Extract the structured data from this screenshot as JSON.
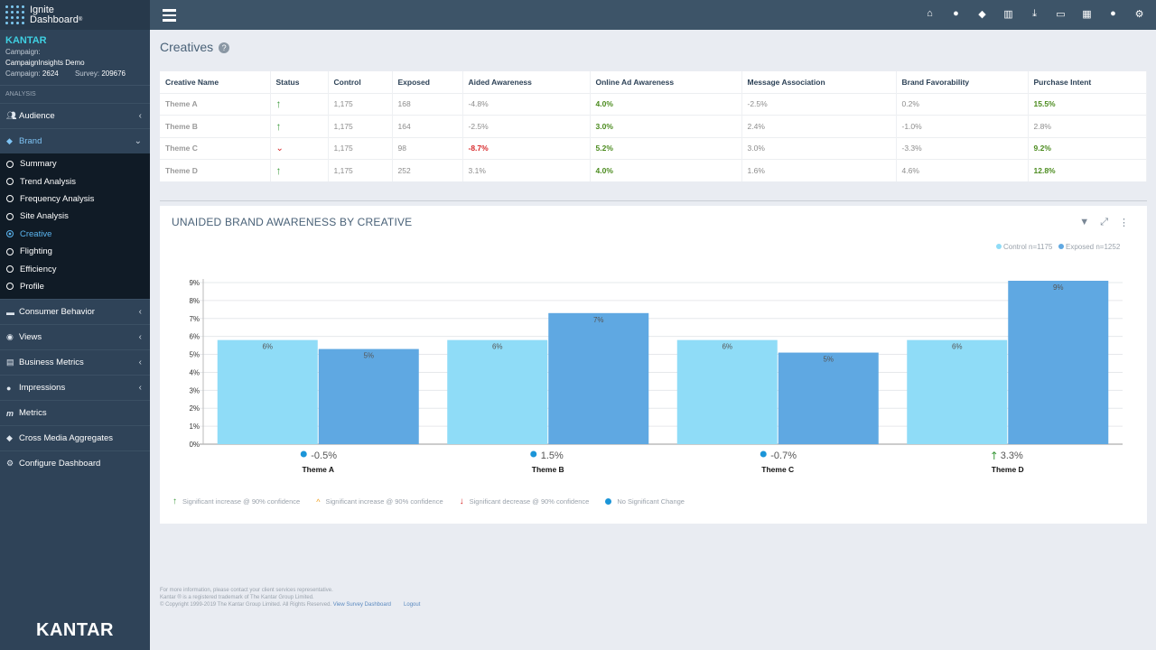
{
  "app": {
    "logo_line1": "Ignite",
    "logo_line2": "Dashboard",
    "trademark": "®"
  },
  "campaign": {
    "brand": "KANTAR",
    "campaign_label": "Campaign:",
    "campaign_name": "CampaignInsights Demo",
    "campaign_id_label": "Campaign:",
    "campaign_id": "2624",
    "survey_label": "Survey:",
    "survey_id": "209676"
  },
  "sidebar": {
    "section": "ANALYSIS",
    "items": [
      {
        "label": "Audience",
        "icon": "users-icon"
      },
      {
        "label": "Brand",
        "icon": "tag-icon"
      },
      {
        "label": "Consumer Behavior",
        "icon": "chat-icon"
      },
      {
        "label": "Views",
        "icon": "eye-icon"
      },
      {
        "label": "Business Metrics",
        "icon": "document-icon"
      },
      {
        "label": "Impressions",
        "icon": "globe-icon"
      },
      {
        "label": "Metrics",
        "icon": "m-icon"
      },
      {
        "label": "Cross Media Aggregates",
        "icon": "tags-icon"
      },
      {
        "label": "Configure Dashboard",
        "icon": "cogs-icon"
      }
    ],
    "brand_sub": [
      "Summary",
      "Trend Analysis",
      "Frequency Analysis",
      "Site Analysis",
      "Creative",
      "Flighting",
      "Efficiency",
      "Profile"
    ],
    "footer_logo": "KANTAR"
  },
  "topbar": {
    "icons": [
      "home-icon",
      "users-icon",
      "tags-icon",
      "bar-chart-icon",
      "download-icon",
      "print-icon",
      "table-icon",
      "user-icon",
      "cogs-icon"
    ]
  },
  "page": {
    "title": "Creatives"
  },
  "table": {
    "headers": [
      "Creative Name",
      "Status",
      "Control",
      "Exposed",
      "Aided Awareness",
      "Online Ad Awareness",
      "Message Association",
      "Brand Favorability",
      "Purchase Intent"
    ],
    "rows": [
      {
        "name": "Theme A",
        "status": "up",
        "control": "1,175",
        "exposed": "168",
        "aided": "-4.8%",
        "online": "4.0%",
        "message": "-2.5%",
        "favor": "0.2%",
        "intent": "15.5%"
      },
      {
        "name": "Theme B",
        "status": "up",
        "control": "1,175",
        "exposed": "164",
        "aided": "-2.5%",
        "online": "3.0%",
        "message": "2.4%",
        "favor": "-1.0%",
        "intent": "2.8%"
      },
      {
        "name": "Theme C",
        "status": "down",
        "control": "1,175",
        "exposed": "98",
        "aided": "-8.7%",
        "online": "5.2%",
        "message": "3.0%",
        "favor": "-3.3%",
        "intent": "9.2%"
      },
      {
        "name": "Theme D",
        "status": "up",
        "control": "1,175",
        "exposed": "252",
        "aided": "3.1%",
        "online": "4.0%",
        "message": "1.6%",
        "favor": "4.6%",
        "intent": "12.8%"
      }
    ]
  },
  "chart_data": {
    "type": "bar",
    "title": "UNAIDED BRAND AWARENESS BY CREATIVE",
    "categories": [
      "Theme A",
      "Theme B",
      "Theme C",
      "Theme D"
    ],
    "series": [
      {
        "name": "Control n=1175",
        "values": [
          5.8,
          5.8,
          5.8,
          5.8
        ],
        "labels": [
          "6%",
          "6%",
          "6%",
          "6%"
        ],
        "color": "#8fdcf7"
      },
      {
        "name": "Exposed n=1252",
        "values": [
          5.3,
          7.3,
          5.1,
          9.1
        ],
        "labels": [
          "5%",
          "7%",
          "5%",
          "9%"
        ],
        "color": "#5fa8e2"
      }
    ],
    "ylim": [
      0,
      9
    ],
    "yticks": [
      "0%",
      "1%",
      "2%",
      "3%",
      "4%",
      "5%",
      "6%",
      "7%",
      "8%",
      "9%"
    ],
    "deltas": [
      {
        "text": "-0.5%",
        "status": "none"
      },
      {
        "text": "1.5%",
        "status": "none"
      },
      {
        "text": "-0.7%",
        "status": "none"
      },
      {
        "text": "3.3%",
        "status": "up"
      }
    ],
    "grid": true,
    "legend_position": "top-right"
  },
  "chart_legend": [
    {
      "label": "Significant increase @ 90% confidence",
      "icon": "arrow-up-green-icon"
    },
    {
      "label": "Significant increase @ 90% confidence",
      "icon": "caret-up-orange-icon"
    },
    {
      "label": "Significant decrease @ 90% confidence",
      "icon": "arrow-down-red-icon"
    },
    {
      "label": "No Significant Change",
      "icon": "dot-blue-icon"
    }
  ],
  "footer": {
    "line1": "For more information, please contact your client services representative.",
    "line2": "Kantar ® is a registered trademark of The Kantar Group Limited.",
    "line3": "© Copyright 1999-2019 The Kantar Group Limited. All Rights Reserved.",
    "link1": "View Survey Dashboard",
    "link2": "Logout"
  }
}
